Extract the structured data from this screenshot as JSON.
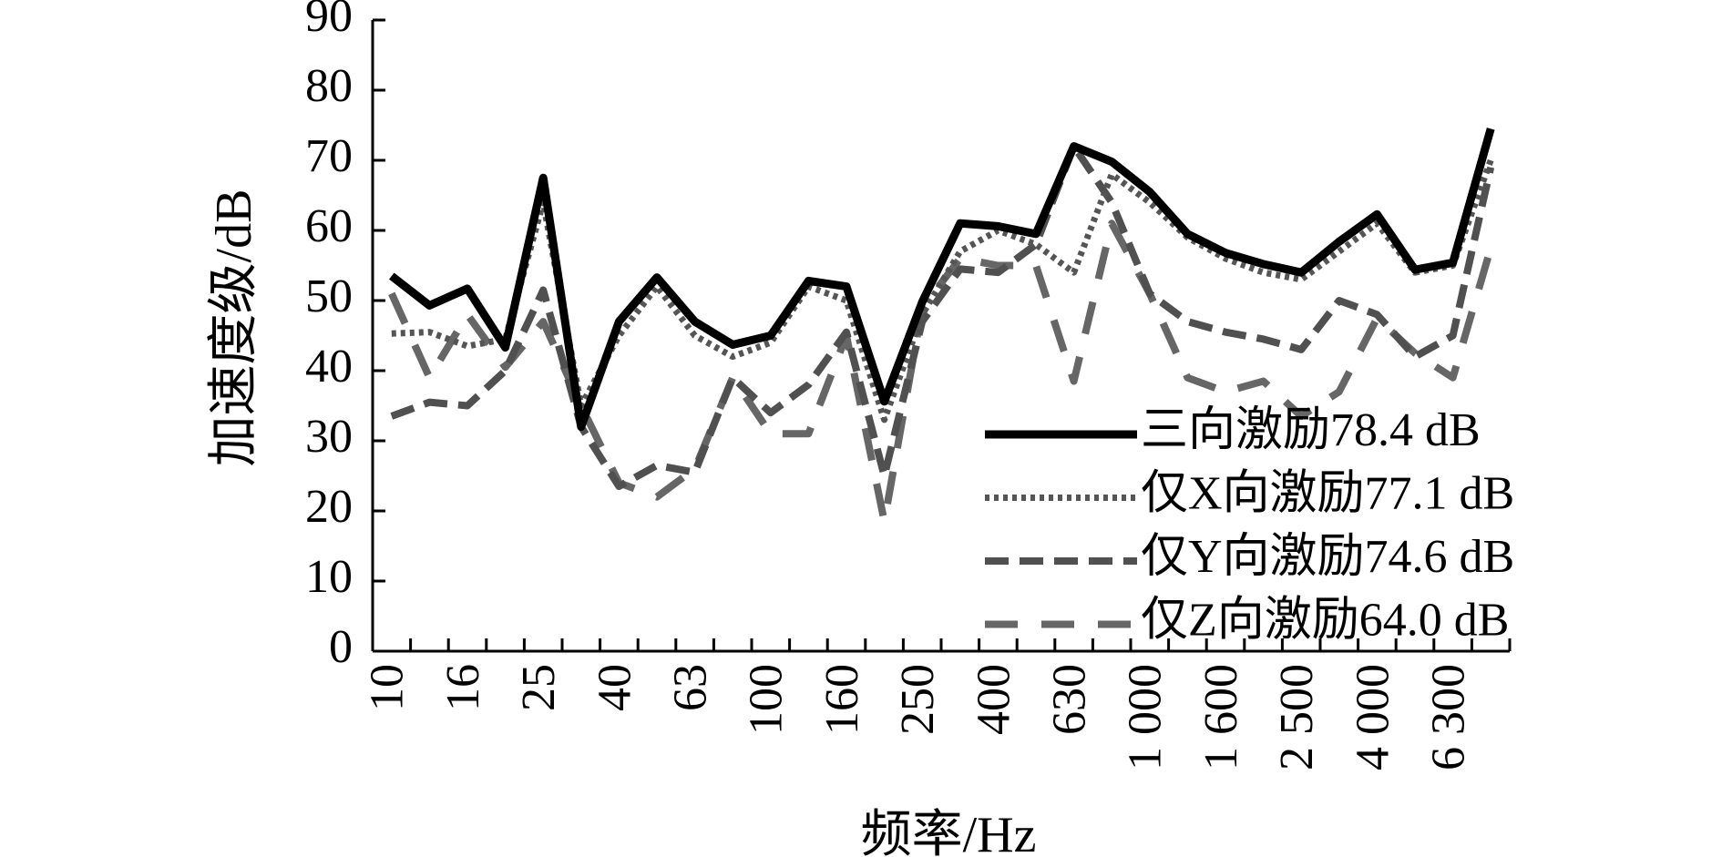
{
  "chart_data": {
    "type": "line",
    "x_label": "频率/Hz",
    "y_label": "加速度级/dB",
    "categories": [
      "10",
      null,
      "16",
      null,
      "25",
      null,
      "40",
      null,
      "63",
      null,
      "100",
      null,
      "160",
      null,
      "250",
      null,
      "400",
      null,
      "630",
      null,
      "1 000",
      null,
      "1 600",
      null,
      "2 500",
      null,
      "4 000",
      null,
      "6 300",
      null
    ],
    "ylim": [
      0,
      90
    ],
    "yticks": [
      0,
      10,
      20,
      30,
      40,
      50,
      60,
      70,
      80,
      90
    ],
    "legend": "lower-right",
    "series": [
      {
        "name": "三向激励78.4 dB",
        "color": "#000000",
        "dash": "solid",
        "width": 9,
        "values": [
          53.5,
          49.3,
          51.7,
          43.3,
          67.5,
          32,
          47,
          53.3,
          47,
          43.7,
          45,
          52.8,
          52,
          35.6,
          49.8,
          61,
          60.6,
          59.5,
          72,
          69.8,
          65.5,
          59.5,
          56.8,
          55.2,
          54,
          58.4,
          62.3,
          54.4,
          55.4,
          74.5
        ]
      },
      {
        "name": "仅X向激励77.1 dB",
        "color": "#555555",
        "dash": "dotted",
        "width": 7,
        "values": [
          45.3,
          45.5,
          43.5,
          44.5,
          64,
          35,
          45,
          52,
          45,
          42,
          44,
          52,
          50,
          33,
          48,
          57,
          60,
          58,
          54,
          68,
          64,
          59,
          56,
          54,
          53,
          57,
          61,
          54,
          55,
          70
        ]
      },
      {
        "name": "仅Y向激励74.6 dB",
        "color": "#505050",
        "dash": "dashed",
        "width": 8,
        "values": [
          33.5,
          35.5,
          35,
          40,
          51.5,
          32,
          23.5,
          26.5,
          25.5,
          39,
          34,
          38,
          45.5,
          25,
          47,
          54.5,
          54,
          58,
          72,
          64,
          51,
          47,
          45.5,
          44.5,
          43,
          50,
          48,
          42,
          45,
          69
        ]
      },
      {
        "name": "仅Z向激励64.0 dB",
        "color": "#666666",
        "dash": "longdash",
        "width": 8,
        "values": [
          51,
          39,
          48,
          40.5,
          47,
          35,
          24,
          22,
          26,
          39,
          31,
          31,
          45,
          18.5,
          49,
          56,
          55,
          55,
          38.5,
          61,
          51,
          39,
          37,
          38.5,
          33.5,
          37,
          47.5,
          42.5,
          39,
          57.5
        ]
      }
    ]
  }
}
